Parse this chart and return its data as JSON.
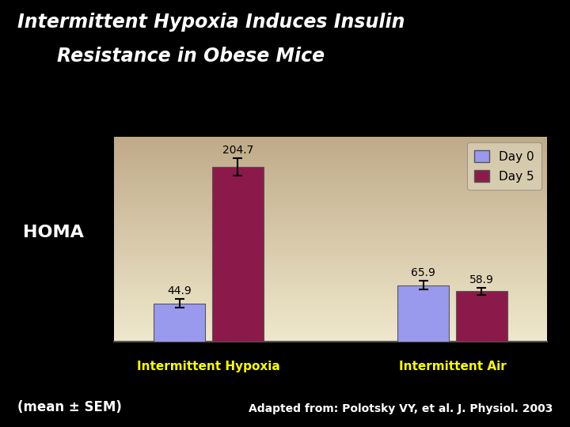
{
  "title_line1": "Intermittent Hypoxia Induces Insulin",
  "title_line2": "Resistance in Obese Mice",
  "ylabel": "HOMA",
  "groups": [
    "Intermittent Hypoxia",
    "Intermittent Air"
  ],
  "series": [
    "Day 0",
    "Day 5"
  ],
  "values": [
    [
      44.9,
      204.7
    ],
    [
      65.9,
      58.9
    ]
  ],
  "errors": [
    [
      5,
      10
    ],
    [
      5,
      4
    ]
  ],
  "bar_color_day0": "#9999ee",
  "bar_color_day5": "#8B1A4A",
  "background_color": "#000000",
  "plot_bg_color_top": "#bfaa88",
  "plot_bg_color_bottom": "#efe8cc",
  "xlabel_color": "#ffff00",
  "title_color": "#ffffff",
  "ylabel_color": "#ffffff",
  "bottom_text_left": "(mean ± SEM)",
  "bottom_text_right": "Adapted from: Polotsky VY, et al. J. Physiol. 2003",
  "bottom_text_color": "#ffffff",
  "ylim": [
    0,
    240
  ],
  "legend_labels": [
    "Day 0",
    "Day 5"
  ],
  "group_centers": [
    1.0,
    2.8
  ],
  "bar_width": 0.38,
  "bar_gap": 0.05,
  "xlim": [
    0.3,
    3.5
  ]
}
